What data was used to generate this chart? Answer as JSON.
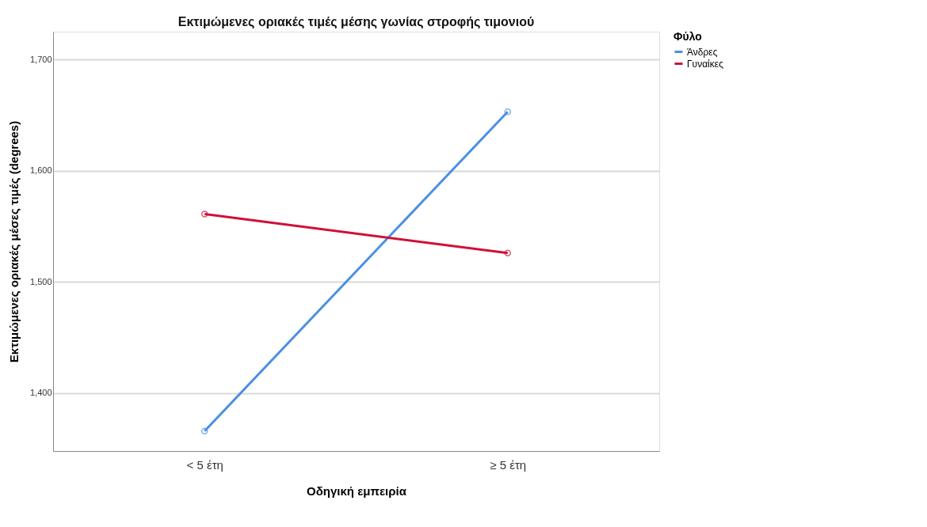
{
  "chart_data": {
    "type": "line",
    "title": "Εκτιμώμενες οριακές τιμές μέσης γωνίας στροφής τιμονιού",
    "xlabel": "Οδηγική εμπειρία",
    "ylabel": "Εκτιμώμενες οριακές μέσες τιμές (degrees)",
    "legend_title": "Φύλο",
    "categories": [
      "< 5 έτη",
      "≥ 5 έτη"
    ],
    "series": [
      {
        "name": "Άνδρες",
        "color": "#4a90e2",
        "values": [
          1366,
          1653
        ]
      },
      {
        "name": "Γυναίκες",
        "color": "#d0103a",
        "values": [
          1561,
          1526
        ]
      }
    ],
    "ylim": [
      1348,
      1725
    ],
    "yticks": [
      {
        "value": 1400,
        "label": "1,400"
      },
      {
        "value": 1500,
        "label": "1,500"
      },
      {
        "value": 1600,
        "label": "1,600"
      },
      {
        "value": 1700,
        "label": "1,700"
      }
    ],
    "grid": "y",
    "legend": "top right",
    "marker": "circle",
    "line_style": "solid"
  }
}
